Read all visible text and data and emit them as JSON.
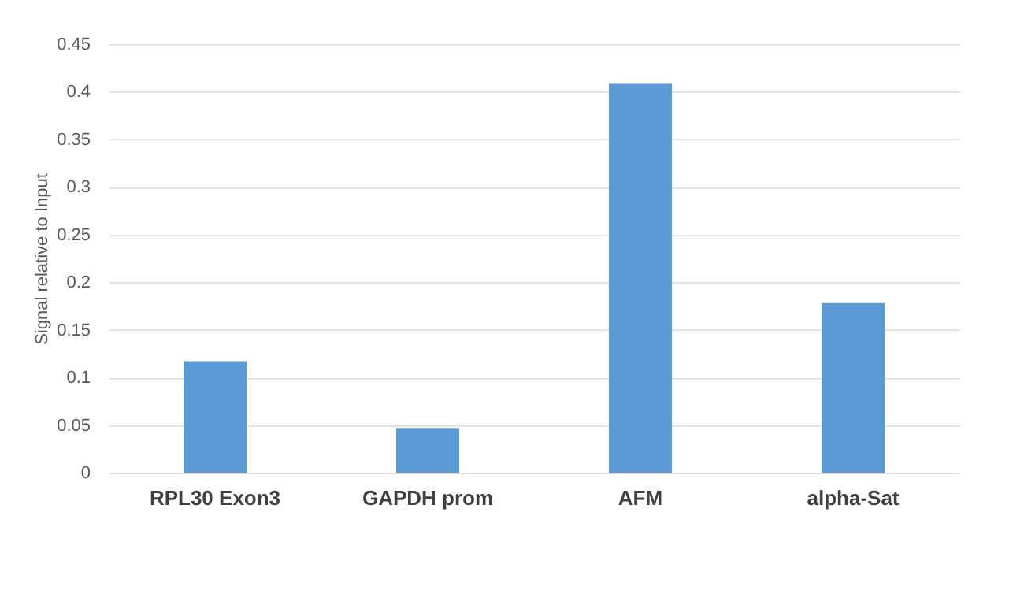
{
  "chart_data": {
    "type": "bar",
    "ylabel": "Signal relative to Input",
    "categories": [
      "RPL30 Exon3",
      "GAPDH prom",
      "AFM",
      "alpha-Sat"
    ],
    "values": [
      0.117,
      0.047,
      0.409,
      0.178
    ],
    "color": "#5b9bd5",
    "ylim": [
      0,
      0.45
    ],
    "yticks": [
      0,
      0.05,
      0.1,
      0.15,
      0.2,
      0.25,
      0.3,
      0.35,
      0.4,
      0.45
    ],
    "grid": "y"
  }
}
